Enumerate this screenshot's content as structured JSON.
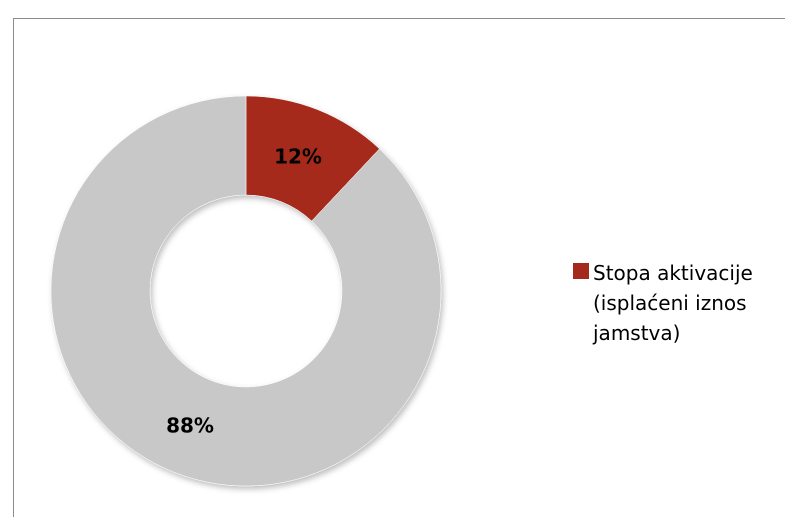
{
  "chart_data": {
    "type": "pie",
    "donut": true,
    "title": "",
    "slices": [
      {
        "label": "Stopa aktivacije (isplaćeni iznos jamstva)",
        "value": 12,
        "display": "12%",
        "color": "#a52a1e"
      },
      {
        "label": "",
        "value": 88,
        "display": "88%",
        "color": "#c8c8c8"
      }
    ],
    "legend": {
      "placement": "right",
      "entries": [
        {
          "text": "Stopa aktivacije (isplaćeni iznos jamstva)",
          "color": "#a52a1e"
        }
      ]
    }
  }
}
